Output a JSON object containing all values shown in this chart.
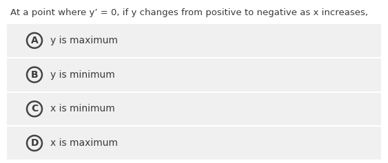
{
  "question": "At a point where y’ = 0, if y changes from positive to negative as x increases,",
  "options": [
    {
      "label": "A",
      "text": "y is maximum"
    },
    {
      "label": "B",
      "text": "y is minimum"
    },
    {
      "label": "C",
      "text": "x is minimum"
    },
    {
      "label": "D",
      "text": "x is maximum"
    }
  ],
  "bg_color": "#ffffff",
  "option_bg_color": "#f0f0f0",
  "text_color": "#3a3a3a",
  "circle_edge_color": "#444444",
  "question_fontsize": 9.5,
  "option_fontsize": 10,
  "label_fontsize": 10
}
